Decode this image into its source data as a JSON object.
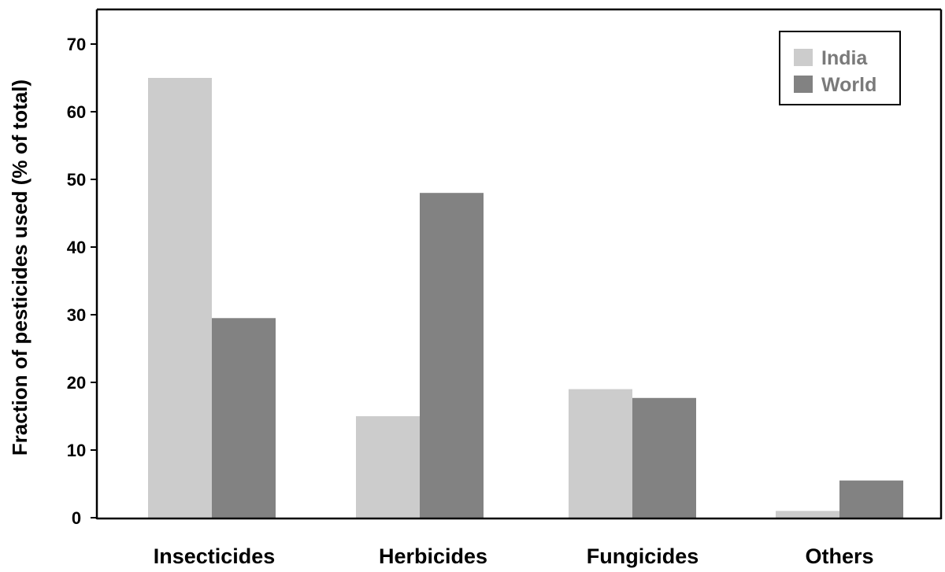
{
  "chart_data": {
    "type": "bar",
    "title": "",
    "xlabel": "",
    "ylabel": "Fraction of pesticides used (% of total)",
    "categories": [
      "Insecticides",
      "Herbicides",
      "Fungicides",
      "Others"
    ],
    "series": [
      {
        "name": "India",
        "color": "#cccccc",
        "values": [
          65,
          15,
          19,
          1
        ]
      },
      {
        "name": "World",
        "color": "#828282",
        "values": [
          29.5,
          48,
          17.7,
          5.5
        ]
      }
    ],
    "ylim": [
      0,
      72
    ],
    "yticks": [
      "0",
      "10",
      "20",
      "30",
      "40",
      "50",
      "60",
      "70"
    ],
    "grid": false,
    "legend_position": "top-right"
  }
}
